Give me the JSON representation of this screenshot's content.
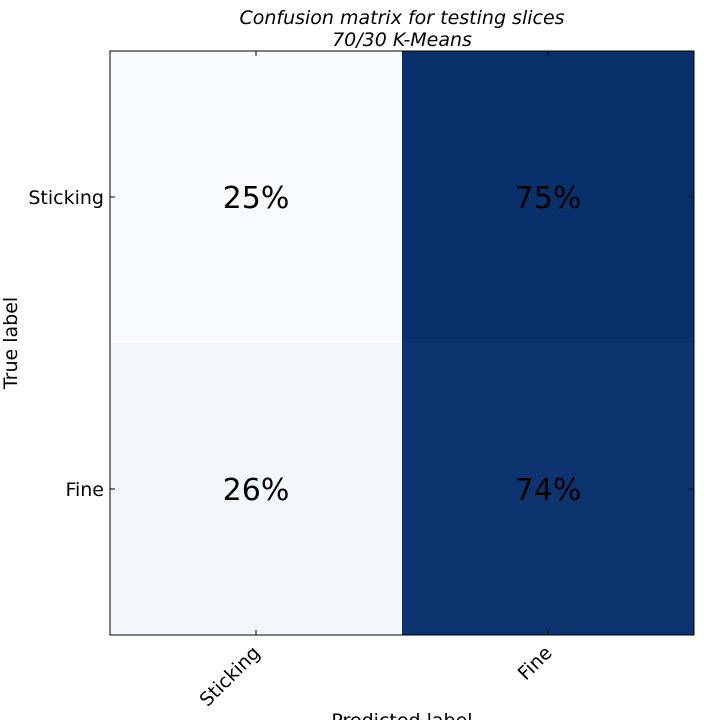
{
  "chart_data": {
    "type": "heatmap",
    "title": "Confusion matrix for testing slices",
    "subtitle": "70/30 K-Means",
    "xlabel": "Predicted label",
    "ylabel": "True label",
    "x_categories": [
      "Sticking",
      "Fine"
    ],
    "y_categories": [
      "Sticking",
      "Fine"
    ],
    "values": [
      [
        25,
        75
      ],
      [
        26,
        74
      ]
    ],
    "cell_labels": [
      [
        "25%",
        "75%"
      ],
      [
        "26%",
        "74%"
      ]
    ],
    "colormap": "Blues",
    "grid": false,
    "legend": "none",
    "colors": {
      "low": "#f7fbff",
      "high": "#08306b"
    }
  }
}
